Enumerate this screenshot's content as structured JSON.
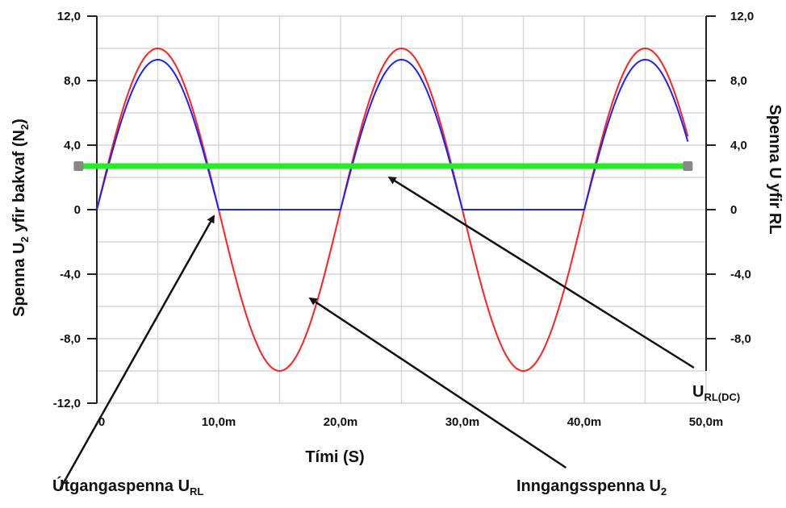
{
  "chart_data": {
    "type": "line",
    "xlabel": "Tími (S)",
    "ylabel_left": {
      "main": "Spenna U",
      "sub": "2",
      "rest": " yfir bakvaf (N",
      "sub2": "2",
      "close": ")"
    },
    "ylabel_right": "Spenna U yfir RL",
    "xlim": [
      0,
      50
    ],
    "x_unit": "ms",
    "ylim": [
      -12,
      12
    ],
    "x_ticks": [
      0,
      10,
      20,
      30,
      40,
      50
    ],
    "x_tick_labels": [
      "0",
      "10,0m",
      "20,0m",
      "30,0m",
      "40,0m",
      "50,0m"
    ],
    "y_ticks": [
      -12,
      -8,
      -4,
      0,
      4,
      8,
      12
    ],
    "y_tick_labels_left": [
      "-12,0",
      "-8,0",
      "-4,0",
      "0",
      "4,0",
      "8,0",
      "12,0"
    ],
    "y_tick_labels_right": [
      "",
      "-8,0",
      "-4,0",
      "0",
      "4,0",
      "8,0",
      "12,0"
    ],
    "grid": true,
    "series": [
      {
        "color": "#ff2020",
        "kind": "sine",
        "amplitude": 10.0,
        "period_ms": 20,
        "x_start": 0,
        "x_end": 48.5
      },
      {
        "color": "#2020ff",
        "kind": "half_wave_rectified",
        "amplitude": 9.3,
        "period_ms": 20,
        "x_start": 0,
        "x_end": 48.5
      },
      {
        "color": "#22ee22",
        "kind": "dc_level",
        "value": 2.7,
        "x_start": -1.5,
        "x_end": 48.5,
        "marker_color": "#888888"
      }
    ],
    "annotations": [
      {
        "id": "url-dc",
        "main": "U",
        "sub": "RL(DC)",
        "arrow_from": [
          49.0,
          -9.8
        ],
        "arrow_to": [
          24.0,
          2.0
        ]
      },
      {
        "id": "utganga",
        "main": "Útgangaspenna U",
        "sub": "RL",
        "arrow_from": [
          -3.0,
          -17.3
        ],
        "arrow_to": [
          9.6,
          -0.4
        ]
      },
      {
        "id": "inngang",
        "main": "Inngangsspenna U",
        "sub": "2",
        "arrow_from": [
          38.5,
          -16.0
        ],
        "arrow_to": [
          17.5,
          -5.5
        ]
      }
    ]
  }
}
